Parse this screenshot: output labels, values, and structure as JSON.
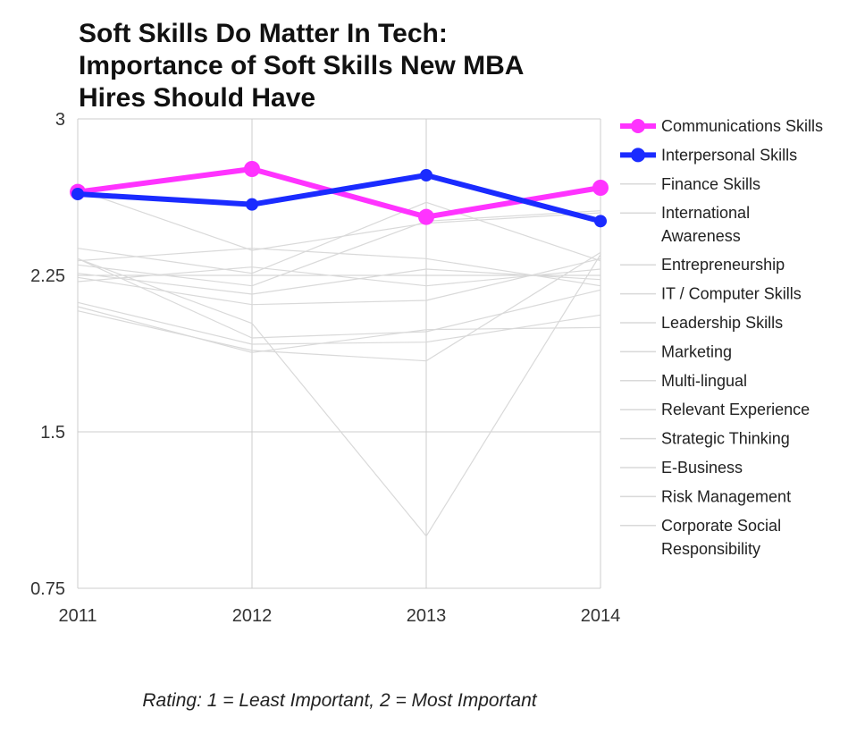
{
  "chart_data": {
    "type": "line",
    "title": [
      "Soft Skills Do Matter In Tech:",
      "Importance of Soft Skills New MBA",
      "Hires Should Have"
    ],
    "caption": "Rating: 1 = Least Important, 2 = Most Important",
    "x": [
      "2011",
      "2012",
      "2013",
      "2014"
    ],
    "ylim": [
      0.75,
      3
    ],
    "yticks": [
      "0.75",
      "1.5",
      "2.25",
      "3"
    ],
    "ytick_values": [
      0.75,
      1.5,
      2.25,
      3
    ],
    "grid": true,
    "legend_position": "right",
    "series": [
      {
        "name": "Communications Skills",
        "values": [
          2.65,
          2.76,
          2.53,
          2.67
        ],
        "color": "#ff33ff",
        "highlight": true
      },
      {
        "name": "Interpersonal Skills",
        "values": [
          2.64,
          2.59,
          2.73,
          2.51
        ],
        "color": "#1a2bff",
        "highlight": true
      },
      {
        "name": "Finance Skills",
        "values": [
          2.66,
          2.37,
          2.5,
          2.55
        ],
        "color": "#d9d9d9"
      },
      {
        "name": "International Awareness",
        "values": [
          2.38,
          2.26,
          2.6,
          2.32
        ],
        "color": "#d9d9d9"
      },
      {
        "name": "Entrepreneurship",
        "values": [
          2.32,
          2.38,
          2.33,
          2.2
        ],
        "color": "#d9d9d9"
      },
      {
        "name": "IT / Computer Skills",
        "values": [
          2.22,
          2.29,
          2.2,
          2.28
        ],
        "color": "#d9d9d9"
      },
      {
        "name": "Leadership Skills",
        "values": [
          2.3,
          2.2,
          2.51,
          2.56
        ],
        "color": "#d9d9d9"
      },
      {
        "name": "Marketing",
        "values": [
          2.26,
          2.16,
          2.28,
          2.23
        ],
        "color": "#d9d9d9"
      },
      {
        "name": "Multi-lingual",
        "values": [
          2.12,
          1.92,
          1.93,
          2.06
        ],
        "color": "#d9d9d9"
      },
      {
        "name": "Relevant Experience",
        "values": [
          2.24,
          2.11,
          2.13,
          2.33
        ],
        "color": "#d9d9d9"
      },
      {
        "name": "Strategic Thinking",
        "values": [
          2.1,
          1.88,
          1.99,
          2.0
        ],
        "color": "#d9d9d9"
      },
      {
        "name": "E-Business",
        "values": [
          2.33,
          1.95,
          1.98,
          2.18
        ],
        "color": "#d9d9d9"
      },
      {
        "name": "Risk Management",
        "values": [
          2.08,
          1.89,
          1.84,
          2.36
        ],
        "color": "#d9d9d9"
      },
      {
        "name": "Corporate Social Responsibility",
        "values": [
          2.33,
          2.02,
          1.0,
          2.35
        ],
        "color": "#d9d9d9"
      }
    ],
    "legend_display": [
      [
        "Communications Skills"
      ],
      [
        "Interpersonal Skills"
      ],
      [
        "Finance Skills"
      ],
      [
        "International",
        "Awareness"
      ],
      [
        "Entrepreneurship"
      ],
      [
        "IT / Computer Skills"
      ],
      [
        "Leadership Skills"
      ],
      [
        "Marketing"
      ],
      [
        "Multi-lingual"
      ],
      [
        "Relevant Experience"
      ],
      [
        "Strategic Thinking"
      ],
      [
        "E-Business"
      ],
      [
        "Risk Management"
      ],
      [
        "Corporate Social",
        "Responsibility"
      ]
    ]
  }
}
